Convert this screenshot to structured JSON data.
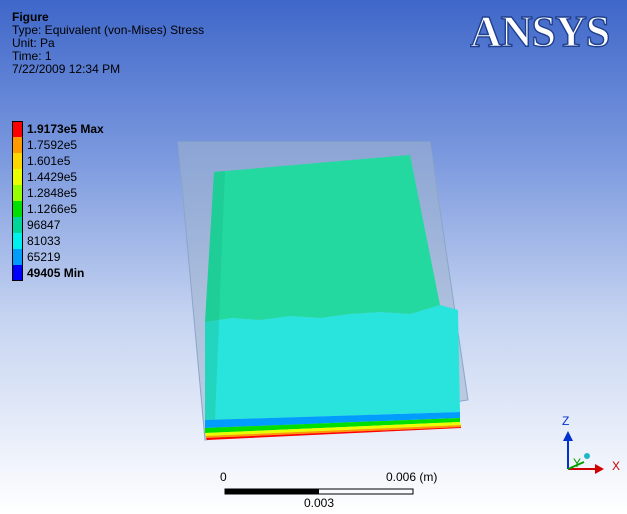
{
  "header": {
    "title": "Figure",
    "type_line": "Type: Equivalent (von-Mises) Stress",
    "unit_line": "Unit: Pa",
    "time_line": "Time: 1",
    "date_line": "7/22/2009 12:34 PM"
  },
  "logo": {
    "text": "ANSYS"
  },
  "legend": {
    "entries": [
      {
        "label": "1.9173e5 Max",
        "color": "#ff0000",
        "bold": true
      },
      {
        "label": "1.7592e5",
        "color": "#ff9900"
      },
      {
        "label": "1.601e5",
        "color": "#ffd700"
      },
      {
        "label": "1.4429e5",
        "color": "#e9ff00"
      },
      {
        "label": "1.2848e5",
        "color": "#96ff00"
      },
      {
        "label": "1.1266e5",
        "color": "#00e000"
      },
      {
        "label": "96847",
        "color": "#00d59a"
      },
      {
        "label": "81033",
        "color": "#00f0ee"
      },
      {
        "label": "65219",
        "color": "#009dff"
      },
      {
        "label": "49405 Min",
        "color": "#0000ff",
        "bold": true
      }
    ]
  },
  "scale_bar": {
    "start_label": "0",
    "end_label": "0.006 (m)",
    "mid_label": "0.003"
  },
  "triad": {
    "x_label": "X",
    "y_label": "Y",
    "z_label": "Z"
  },
  "colors": {
    "top_face": "#23d9a0",
    "lower_band": "#28e4dc",
    "box_outline": "#8aa6c8",
    "logo_blue": "#1f3f8f"
  }
}
